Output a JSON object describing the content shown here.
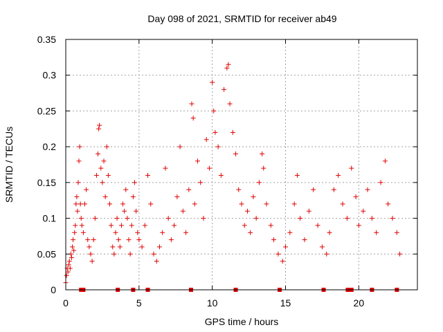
{
  "chart_data": {
    "type": "scatter",
    "title": "Day 098 of 2021, SRMTID for receiver ab49",
    "xlabel": "GPS time / hours",
    "ylabel": "SRMTID / TECUs",
    "xlim": [
      0,
      24
    ],
    "ylim": [
      0,
      0.35
    ],
    "xticks": [
      0,
      5,
      10,
      15,
      20
    ],
    "xtick_labels": [
      "0",
      "5",
      "10",
      "15",
      "20"
    ],
    "yticks": [
      0,
      0.05,
      0.1,
      0.15,
      0.2,
      0.25,
      0.3,
      0.35
    ],
    "ytick_labels": [
      "0",
      "0.05",
      "0.1",
      "0.15",
      "0.2",
      "0.25",
      "0.3",
      "0.35"
    ],
    "grid": true,
    "marker": "+",
    "color": "#e00000",
    "series": [
      {
        "name": "SRMTID",
        "description_of_envelope_hours": "continuous coverage 0 to ~22.8 h; typical values 0.03-0.12 TECU; peaks near 2.2 h (~0.23), 8.6 h (~0.26), 10.0 h (~0.29), 11.1 h (~0.315), 13.5 h (~0.19)",
        "points": [
          [
            0.0,
            0.01
          ],
          [
            0.05,
            0.02
          ],
          [
            0.1,
            0.03
          ],
          [
            0.15,
            0.025
          ],
          [
            0.2,
            0.035
          ],
          [
            0.25,
            0.04
          ],
          [
            0.3,
            0.03
          ],
          [
            0.35,
            0.05
          ],
          [
            0.4,
            0.045
          ],
          [
            0.45,
            0.06
          ],
          [
            0.5,
            0.07
          ],
          [
            0.55,
            0.055
          ],
          [
            0.6,
            0.08
          ],
          [
            0.65,
            0.09
          ],
          [
            0.7,
            0.12
          ],
          [
            0.75,
            0.13
          ],
          [
            0.8,
            0.11
          ],
          [
            0.85,
            0.15
          ],
          [
            0.9,
            0.18
          ],
          [
            0.95,
            0.2
          ],
          [
            1.0,
            0.12
          ],
          [
            1.05,
            0.1
          ],
          [
            1.1,
            0.09
          ],
          [
            1.2,
            0.08
          ],
          [
            1.3,
            0.12
          ],
          [
            1.4,
            0.14
          ],
          [
            1.5,
            0.07
          ],
          [
            1.6,
            0.06
          ],
          [
            1.7,
            0.05
          ],
          [
            1.8,
            0.04
          ],
          [
            1.9,
            0.07
          ],
          [
            2.0,
            0.1
          ],
          [
            2.1,
            0.16
          ],
          [
            2.2,
            0.19
          ],
          [
            2.25,
            0.225
          ],
          [
            2.3,
            0.23
          ],
          [
            2.4,
            0.17
          ],
          [
            2.5,
            0.15
          ],
          [
            2.6,
            0.18
          ],
          [
            2.7,
            0.13
          ],
          [
            2.8,
            0.2
          ],
          [
            2.9,
            0.16
          ],
          [
            3.0,
            0.12
          ],
          [
            3.1,
            0.09
          ],
          [
            3.2,
            0.06
          ],
          [
            3.3,
            0.05
          ],
          [
            3.4,
            0.08
          ],
          [
            3.5,
            0.1
          ],
          [
            3.6,
            0.07
          ],
          [
            3.7,
            0.06
          ],
          [
            3.8,
            0.09
          ],
          [
            3.9,
            0.12
          ],
          [
            4.0,
            0.11
          ],
          [
            4.1,
            0.14
          ],
          [
            4.2,
            0.1
          ],
          [
            4.3,
            0.07
          ],
          [
            4.4,
            0.05
          ],
          [
            4.5,
            0.09
          ],
          [
            4.6,
            0.13
          ],
          [
            4.7,
            0.15
          ],
          [
            4.8,
            0.11
          ],
          [
            4.9,
            0.08
          ],
          [
            5.0,
            0.07
          ],
          [
            5.2,
            0.06
          ],
          [
            5.4,
            0.09
          ],
          [
            5.6,
            0.16
          ],
          [
            5.8,
            0.12
          ],
          [
            6.0,
            0.05
          ],
          [
            6.2,
            0.04
          ],
          [
            6.4,
            0.06
          ],
          [
            6.6,
            0.08
          ],
          [
            6.8,
            0.17
          ],
          [
            7.0,
            0.1
          ],
          [
            7.2,
            0.07
          ],
          [
            7.4,
            0.09
          ],
          [
            7.6,
            0.13
          ],
          [
            7.8,
            0.2
          ],
          [
            8.0,
            0.11
          ],
          [
            8.2,
            0.08
          ],
          [
            8.4,
            0.14
          ],
          [
            8.6,
            0.26
          ],
          [
            8.7,
            0.24
          ],
          [
            8.8,
            0.12
          ],
          [
            9.0,
            0.18
          ],
          [
            9.2,
            0.15
          ],
          [
            9.4,
            0.1
          ],
          [
            9.6,
            0.21
          ],
          [
            9.8,
            0.17
          ],
          [
            10.0,
            0.29
          ],
          [
            10.1,
            0.25
          ],
          [
            10.2,
            0.22
          ],
          [
            10.4,
            0.2
          ],
          [
            10.6,
            0.16
          ],
          [
            10.8,
            0.28
          ],
          [
            11.0,
            0.31
          ],
          [
            11.1,
            0.315
          ],
          [
            11.2,
            0.26
          ],
          [
            11.4,
            0.22
          ],
          [
            11.6,
            0.19
          ],
          [
            11.8,
            0.14
          ],
          [
            12.0,
            0.12
          ],
          [
            12.2,
            0.09
          ],
          [
            12.4,
            0.11
          ],
          [
            12.6,
            0.08
          ],
          [
            12.8,
            0.13
          ],
          [
            13.0,
            0.1
          ],
          [
            13.2,
            0.15
          ],
          [
            13.4,
            0.19
          ],
          [
            13.5,
            0.17
          ],
          [
            13.7,
            0.12
          ],
          [
            14.0,
            0.09
          ],
          [
            14.2,
            0.07
          ],
          [
            14.5,
            0.05
          ],
          [
            14.8,
            0.04
          ],
          [
            15.0,
            0.06
          ],
          [
            15.3,
            0.08
          ],
          [
            15.6,
            0.12
          ],
          [
            15.8,
            0.16
          ],
          [
            16.0,
            0.1
          ],
          [
            16.3,
            0.07
          ],
          [
            16.6,
            0.11
          ],
          [
            16.9,
            0.14
          ],
          [
            17.2,
            0.09
          ],
          [
            17.5,
            0.06
          ],
          [
            17.8,
            0.05
          ],
          [
            18.0,
            0.08
          ],
          [
            18.3,
            0.14
          ],
          [
            18.6,
            0.16
          ],
          [
            18.9,
            0.12
          ],
          [
            19.2,
            0.1
          ],
          [
            19.5,
            0.17
          ],
          [
            19.8,
            0.13
          ],
          [
            20.0,
            0.09
          ],
          [
            20.3,
            0.11
          ],
          [
            20.6,
            0.14
          ],
          [
            20.9,
            0.1
          ],
          [
            21.2,
            0.08
          ],
          [
            21.5,
            0.15
          ],
          [
            21.8,
            0.18
          ],
          [
            22.0,
            0.12
          ],
          [
            22.3,
            0.1
          ],
          [
            22.6,
            0.08
          ],
          [
            22.8,
            0.05
          ]
        ]
      }
    ],
    "baseline_markers": {
      "name": "gaps",
      "y": 0,
      "x": [
        1.05,
        1.2,
        3.55,
        4.6,
        5.6,
        8.55,
        11.6,
        14.6,
        17.6,
        19.25,
        19.5,
        20.9,
        22.6
      ]
    }
  }
}
